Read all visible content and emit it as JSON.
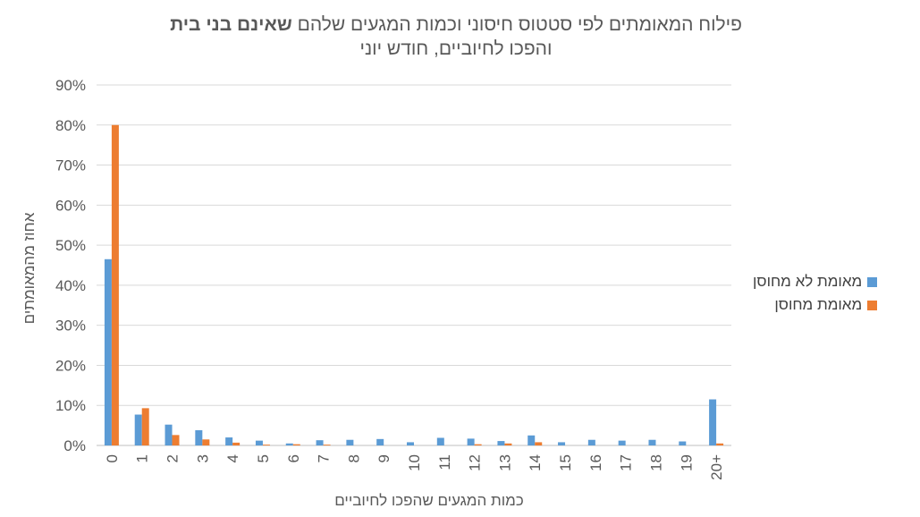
{
  "title": {
    "line1_pre": "פילוח המאומתים לפי סטטוס חיסוני וכמות המגעים שלהם ",
    "line1_bold": "שאינם בני בית",
    "line2": "והפכו לחיוביים, חודש יוני"
  },
  "chart_data": {
    "type": "bar",
    "title": "פילוח המאומתים לפי סטטוס חיסוני וכמות המגעים שלהם שאינם בני בית והפכו לחיוביים, חודש יוני",
    "xlabel": "כמות המגעים שהפכו לחיוביים",
    "ylabel": "אחוז מהמאומתים",
    "ylim": [
      0,
      90
    ],
    "yticks": [
      "0%",
      "10%",
      "20%",
      "30%",
      "40%",
      "50%",
      "60%",
      "70%",
      "80%",
      "90%"
    ],
    "grid": true,
    "legend_position": "right",
    "categories": [
      "0",
      "1",
      "2",
      "3",
      "4",
      "5",
      "6",
      "7",
      "8",
      "9",
      "10",
      "11",
      "12",
      "13",
      "14",
      "15",
      "16",
      "17",
      "18",
      "19",
      "20+"
    ],
    "series": [
      {
        "name": "מאומת לא מחוסן",
        "color": "#5B9BD5",
        "values": [
          46.5,
          7.7,
          5.2,
          3.8,
          2.0,
          1.2,
          0.5,
          1.3,
          1.4,
          1.6,
          0.8,
          1.9,
          1.7,
          1.1,
          2.5,
          0.8,
          1.4,
          1.2,
          1.4,
          1.0,
          11.5
        ]
      },
      {
        "name": "מאומת מחוסן",
        "color": "#ED7D31",
        "values": [
          80.0,
          9.3,
          2.6,
          1.5,
          0.7,
          0.2,
          0.3,
          0.2,
          0.0,
          0.0,
          0.0,
          0.0,
          0.3,
          0.5,
          0.8,
          0.0,
          0.0,
          0.0,
          0.0,
          0.0,
          0.5
        ]
      }
    ]
  }
}
